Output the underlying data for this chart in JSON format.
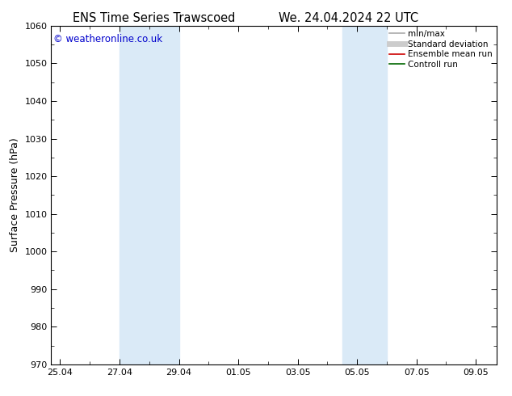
{
  "title_left": "ENS Time Series Trawscoed",
  "title_right": "We. 24.04.2024 22 UTC",
  "ylabel": "Surface Pressure (hPa)",
  "ylim": [
    970,
    1060
  ],
  "ytick_step": 10,
  "bg_color": "#ffffff",
  "plot_bg_color": "#ffffff",
  "copyright_text": "© weatheronline.co.uk",
  "copyright_color": "#0000cc",
  "shaded_bands": [
    {
      "xstart": 2.0,
      "xend": 4.0,
      "color": "#daeaf7"
    },
    {
      "xstart": 9.5,
      "xend": 11.0,
      "color": "#daeaf7"
    }
  ],
  "xtick_labels": [
    "25.04",
    "27.04",
    "29.04",
    "01.05",
    "03.05",
    "05.05",
    "07.05",
    "09.05"
  ],
  "xtick_positions": [
    0,
    2,
    4,
    6,
    8,
    10,
    12,
    14
  ],
  "xlim": [
    -0.3,
    14.7
  ],
  "legend_entries": [
    {
      "label": "min/max",
      "color": "#aaaaaa",
      "lw": 1.2
    },
    {
      "label": "Standard deviation",
      "color": "#cccccc",
      "lw": 5
    },
    {
      "label": "Ensemble mean run",
      "color": "#cc0000",
      "lw": 1.2
    },
    {
      "label": "Controll run",
      "color": "#006600",
      "lw": 1.2
    }
  ],
  "title_fontsize": 10.5,
  "axis_label_fontsize": 9,
  "tick_fontsize": 8,
  "legend_fontsize": 7.5,
  "copyright_fontsize": 8.5,
  "spine_color": "#000000"
}
